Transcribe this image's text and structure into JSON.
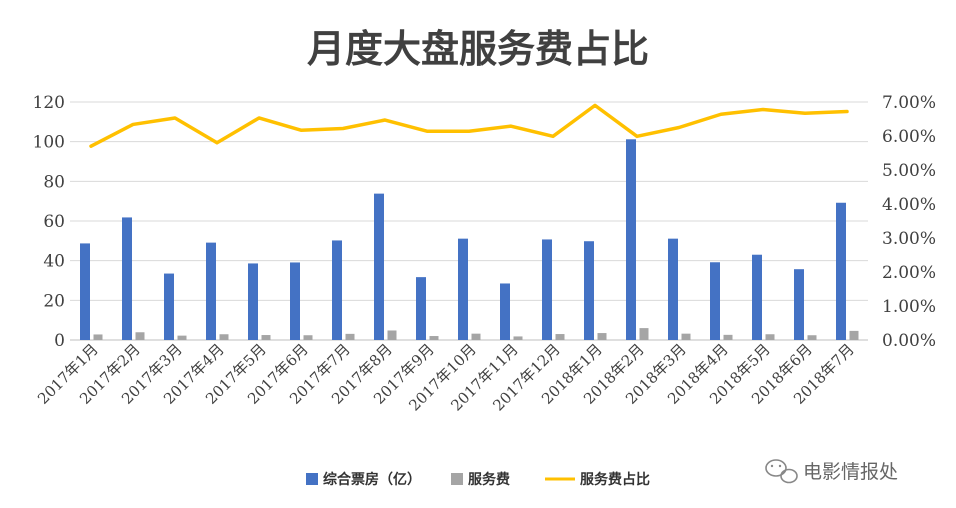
{
  "chart_data": {
    "type": "bar",
    "title": "月度大盘服务费占比",
    "categories": [
      "2017年1月",
      "2017年2月",
      "2017年3月",
      "2017年4月",
      "2017年5月",
      "2017年6月",
      "2017年7月",
      "2017年8月",
      "2017年9月",
      "2017年10月",
      "2017年11月",
      "2017年12月",
      "2018年1月",
      "2018年2月",
      "2018年3月",
      "2018年4月",
      "2018年5月",
      "2018年6月",
      "2018年7月"
    ],
    "series": [
      {
        "name": "综合票房（亿）",
        "kind": "bar",
        "axis": "left",
        "color": "#4472C4",
        "values": [
          48.7,
          61.8,
          33.5,
          49.1,
          38.6,
          39.1,
          50.2,
          73.8,
          31.7,
          51.1,
          28.5,
          50.7,
          49.8,
          101.2,
          51.1,
          39.2,
          43.0,
          35.7,
          69.2
        ]
      },
      {
        "name": "服务费",
        "kind": "bar",
        "axis": "left",
        "color": "#A5A5A5",
        "values": [
          2.8,
          3.9,
          2.2,
          2.9,
          2.5,
          2.4,
          3.1,
          4.8,
          2.0,
          3.2,
          1.8,
          3.0,
          3.5,
          6.0,
          3.2,
          2.6,
          2.9,
          2.4,
          4.6
        ]
      },
      {
        "name": "服务费占比",
        "kind": "line",
        "axis": "right",
        "color": "#FFC000",
        "values": [
          0.057,
          0.0634,
          0.0653,
          0.058,
          0.0653,
          0.0617,
          0.0622,
          0.0647,
          0.0614,
          0.0614,
          0.0629,
          0.0599,
          0.069,
          0.0599,
          0.0625,
          0.0664,
          0.0678,
          0.0667,
          0.0672
        ]
      }
    ],
    "left_axis": {
      "ylim": [
        0,
        120
      ],
      "ticks": [
        "0",
        "20",
        "40",
        "60",
        "80",
        "100",
        "120"
      ]
    },
    "right_axis": {
      "ylim": [
        0,
        0.07
      ],
      "ticks": [
        "0.00%",
        "1.00%",
        "2.00%",
        "3.00%",
        "4.00%",
        "5.00%",
        "6.00%",
        "7.00%"
      ]
    },
    "grid": true,
    "legend_position": "bottom"
  },
  "watermark": {
    "text": "电影情报处",
    "icon": "wechat-icon"
  }
}
